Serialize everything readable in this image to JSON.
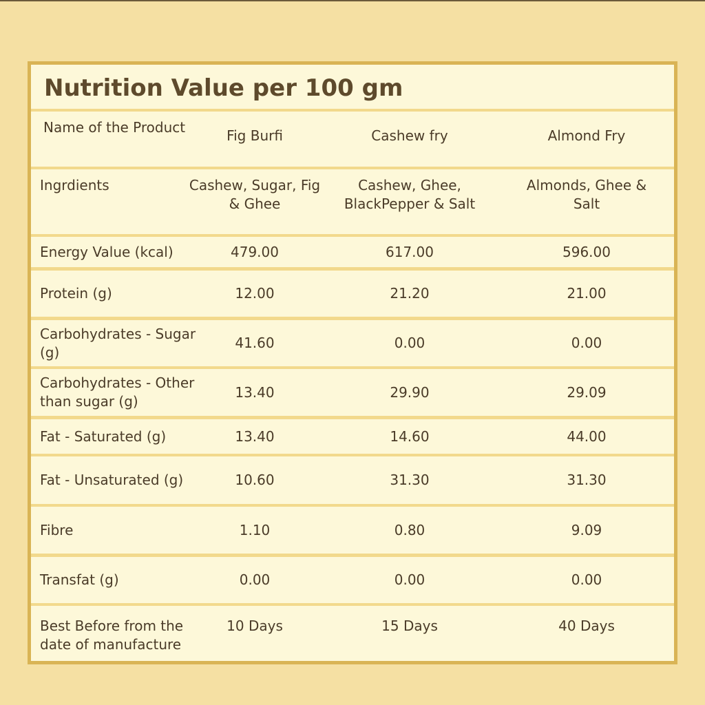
{
  "title": "Nutrition Value per 100 gm",
  "header": {
    "label": "Name of the Product",
    "products": [
      "Fig Burfi",
      "Cashew fry",
      "Almond Fry"
    ]
  },
  "ingredients": {
    "label": "Ingrdients",
    "values": [
      "Cashew, Sugar, Fig & Ghee",
      "Cashew, Ghee, BlackPepper & Salt",
      "Almonds, Ghee & Salt"
    ]
  },
  "rows": [
    {
      "label": "Energy Value (kcal)",
      "values": [
        "479.00",
        "617.00",
        "596.00"
      ]
    },
    {
      "label": "Protein (g)",
      "values": [
        "12.00",
        "21.20",
        "21.00"
      ]
    },
    {
      "label": "Carbohydrates - Sugar (g)",
      "values": [
        "41.60",
        "0.00",
        "0.00"
      ]
    },
    {
      "label": "Carbohydrates - Other than sugar (g)",
      "values": [
        "13.40",
        "29.90",
        "29.09"
      ]
    },
    {
      "label": "Fat - Saturated (g)",
      "values": [
        "13.40",
        "14.60",
        "44.00"
      ]
    },
    {
      "label": "Fat - Unsaturated (g)",
      "values": [
        "10.60",
        "31.30",
        "31.30"
      ]
    },
    {
      "label": "Fibre",
      "values": [
        "1.10",
        "0.80",
        "9.09"
      ]
    },
    {
      "label": "Transfat (g)",
      "values": [
        "0.00",
        "0.00",
        "0.00"
      ]
    }
  ],
  "shelf_life": {
    "label": "Best Before from the date of manufacture",
    "values": [
      "10 Days",
      "15 Days",
      "40 Days"
    ]
  }
}
